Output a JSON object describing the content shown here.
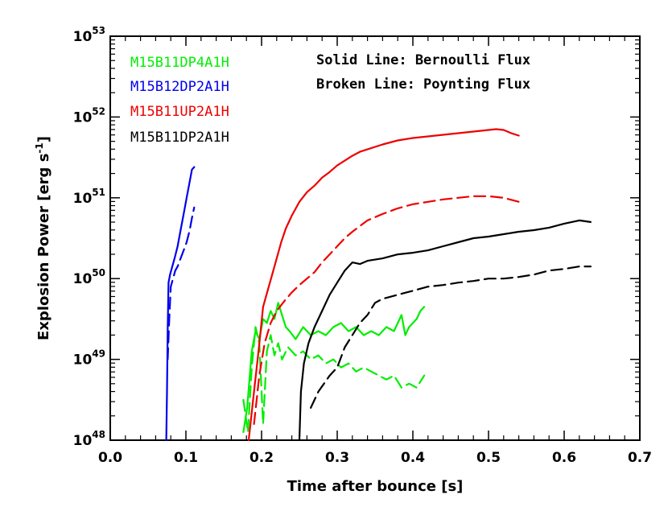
{
  "chart_data": {
    "type": "line",
    "xlabel": "Time after bounce [s]",
    "ylabel": "Explosion Power [erg s",
    "ylabel_sup": "-1",
    "ylabel_close": "]",
    "xlim": [
      0.0,
      0.7
    ],
    "ylim_log10": [
      48,
      53
    ],
    "y_scale": "log",
    "x_ticks": [
      "0.0",
      "0.1",
      "0.2",
      "0.3",
      "0.4",
      "0.5",
      "0.6",
      "0.7"
    ],
    "y_ticks": [
      {
        "base": "10",
        "exp": "48"
      },
      {
        "base": "10",
        "exp": "49"
      },
      {
        "base": "10",
        "exp": "50"
      },
      {
        "base": "10",
        "exp": "51"
      },
      {
        "base": "10",
        "exp": "52"
      },
      {
        "base": "10",
        "exp": "53"
      }
    ],
    "annotations": [
      "Solid Line: Bernoulli Flux",
      "Broken Line: Poynting Flux"
    ],
    "legend_placement": "top-left",
    "series": [
      {
        "name": "M15B11DP4A1H",
        "color": "#00ee00",
        "style": "solid",
        "points": [
          [
            0.176,
            48.1
          ],
          [
            0.181,
            48.4
          ],
          [
            0.187,
            49.1
          ],
          [
            0.192,
            49.35
          ],
          [
            0.197,
            49.25
          ],
          [
            0.202,
            49.5
          ],
          [
            0.207,
            49.45
          ],
          [
            0.212,
            49.6
          ],
          [
            0.217,
            49.5
          ],
          [
            0.222,
            49.7
          ],
          [
            0.227,
            49.55
          ],
          [
            0.232,
            49.4
          ],
          [
            0.237,
            49.35
          ],
          [
            0.245,
            49.25
          ],
          [
            0.255,
            49.4
          ],
          [
            0.265,
            49.3
          ],
          [
            0.275,
            49.35
          ],
          [
            0.285,
            49.3
          ],
          [
            0.295,
            49.4
          ],
          [
            0.305,
            49.45
          ],
          [
            0.315,
            49.35
          ],
          [
            0.325,
            49.4
          ],
          [
            0.335,
            49.3
          ],
          [
            0.345,
            49.35
          ],
          [
            0.355,
            49.3
          ],
          [
            0.365,
            49.4
          ],
          [
            0.375,
            49.35
          ],
          [
            0.385,
            49.55
          ],
          [
            0.39,
            49.3
          ],
          [
            0.395,
            49.4
          ],
          [
            0.405,
            49.5
          ],
          [
            0.41,
            49.6
          ],
          [
            0.415,
            49.65
          ]
        ]
      },
      {
        "name": "M15B11DP4A1H",
        "color": "#00ee00",
        "style": "dashed",
        "points": [
          [
            0.176,
            48.5
          ],
          [
            0.182,
            48.1
          ],
          [
            0.187,
            48.9
          ],
          [
            0.192,
            49.4
          ],
          [
            0.197,
            49.2
          ],
          [
            0.202,
            48.2
          ],
          [
            0.207,
            49.1
          ],
          [
            0.212,
            49.3
          ],
          [
            0.217,
            49.05
          ],
          [
            0.222,
            49.2
          ],
          [
            0.227,
            49.0
          ],
          [
            0.235,
            49.15
          ],
          [
            0.245,
            49.05
          ],
          [
            0.255,
            49.1
          ],
          [
            0.265,
            49.0
          ],
          [
            0.275,
            49.05
          ],
          [
            0.285,
            48.95
          ],
          [
            0.295,
            49.0
          ],
          [
            0.305,
            48.9
          ],
          [
            0.315,
            48.95
          ],
          [
            0.325,
            48.85
          ],
          [
            0.335,
            48.9
          ],
          [
            0.345,
            48.85
          ],
          [
            0.355,
            48.8
          ],
          [
            0.365,
            48.75
          ],
          [
            0.375,
            48.8
          ],
          [
            0.385,
            48.65
          ],
          [
            0.395,
            48.7
          ],
          [
            0.405,
            48.65
          ],
          [
            0.415,
            48.8
          ]
        ]
      },
      {
        "name": "M15B12DP2A1H",
        "color": "#0000ee",
        "style": "solid",
        "points": [
          [
            0.074,
            48.0
          ],
          [
            0.075,
            48.6
          ],
          [
            0.076,
            49.4
          ],
          [
            0.077,
            49.95
          ],
          [
            0.079,
            50.05
          ],
          [
            0.082,
            50.15
          ],
          [
            0.085,
            50.25
          ],
          [
            0.089,
            50.4
          ],
          [
            0.093,
            50.6
          ],
          [
            0.097,
            50.8
          ],
          [
            0.101,
            51.0
          ],
          [
            0.105,
            51.2
          ],
          [
            0.108,
            51.35
          ],
          [
            0.111,
            51.38
          ]
        ]
      },
      {
        "name": "M15B12DP2A1H",
        "color": "#0000ee",
        "style": "dashed",
        "points": [
          [
            0.076,
            49.0
          ],
          [
            0.078,
            49.5
          ],
          [
            0.08,
            49.9
          ],
          [
            0.083,
            50.0
          ],
          [
            0.086,
            50.1
          ],
          [
            0.089,
            50.15
          ],
          [
            0.093,
            50.25
          ],
          [
            0.097,
            50.35
          ],
          [
            0.101,
            50.45
          ],
          [
            0.105,
            50.6
          ],
          [
            0.108,
            50.75
          ],
          [
            0.111,
            50.88
          ]
        ]
      },
      {
        "name": "M15B11UP2A1H",
        "color": "#ee0000",
        "style": "solid",
        "points": [
          [
            0.183,
            48.0
          ],
          [
            0.19,
            48.6
          ],
          [
            0.196,
            49.1
          ],
          [
            0.202,
            49.65
          ],
          [
            0.208,
            49.85
          ],
          [
            0.214,
            50.05
          ],
          [
            0.22,
            50.25
          ],
          [
            0.226,
            50.45
          ],
          [
            0.232,
            50.62
          ],
          [
            0.24,
            50.78
          ],
          [
            0.25,
            50.95
          ],
          [
            0.26,
            51.07
          ],
          [
            0.27,
            51.15
          ],
          [
            0.28,
            51.25
          ],
          [
            0.29,
            51.32
          ],
          [
            0.3,
            51.4
          ],
          [
            0.31,
            51.46
          ],
          [
            0.32,
            51.52
          ],
          [
            0.33,
            51.57
          ],
          [
            0.34,
            51.6
          ],
          [
            0.36,
            51.66
          ],
          [
            0.38,
            51.71
          ],
          [
            0.4,
            51.74
          ],
          [
            0.42,
            51.76
          ],
          [
            0.44,
            51.78
          ],
          [
            0.46,
            51.8
          ],
          [
            0.48,
            51.82
          ],
          [
            0.5,
            51.84
          ],
          [
            0.51,
            51.85
          ],
          [
            0.52,
            51.84
          ],
          [
            0.53,
            51.8
          ],
          [
            0.54,
            51.77
          ]
        ]
      },
      {
        "name": "M15B11UP2A1H",
        "color": "#ee0000",
        "style": "dashed",
        "points": [
          [
            0.19,
            48.2
          ],
          [
            0.197,
            48.8
          ],
          [
            0.204,
            49.2
          ],
          [
            0.212,
            49.45
          ],
          [
            0.22,
            49.6
          ],
          [
            0.23,
            49.72
          ],
          [
            0.24,
            49.83
          ],
          [
            0.25,
            49.92
          ],
          [
            0.26,
            50.0
          ],
          [
            0.27,
            50.08
          ],
          [
            0.28,
            50.2
          ],
          [
            0.29,
            50.3
          ],
          [
            0.3,
            50.4
          ],
          [
            0.31,
            50.5
          ],
          [
            0.32,
            50.58
          ],
          [
            0.33,
            50.65
          ],
          [
            0.34,
            50.72
          ],
          [
            0.36,
            50.8
          ],
          [
            0.38,
            50.87
          ],
          [
            0.4,
            50.92
          ],
          [
            0.42,
            50.95
          ],
          [
            0.44,
            50.98
          ],
          [
            0.46,
            51.0
          ],
          [
            0.48,
            51.02
          ],
          [
            0.5,
            51.02
          ],
          [
            0.52,
            51.0
          ],
          [
            0.54,
            50.95
          ]
        ]
      },
      {
        "name": "M15B11DP2A1H",
        "color": "#000000",
        "style": "solid",
        "points": [
          [
            0.25,
            48.0
          ],
          [
            0.252,
            48.6
          ],
          [
            0.256,
            48.95
          ],
          [
            0.262,
            49.2
          ],
          [
            0.27,
            49.4
          ],
          [
            0.28,
            49.6
          ],
          [
            0.29,
            49.8
          ],
          [
            0.3,
            49.95
          ],
          [
            0.31,
            50.1
          ],
          [
            0.32,
            50.2
          ],
          [
            0.33,
            50.18
          ],
          [
            0.34,
            50.22
          ],
          [
            0.36,
            50.25
          ],
          [
            0.38,
            50.3
          ],
          [
            0.4,
            50.32
          ],
          [
            0.42,
            50.35
          ],
          [
            0.44,
            50.4
          ],
          [
            0.46,
            50.45
          ],
          [
            0.48,
            50.5
          ],
          [
            0.5,
            50.52
          ],
          [
            0.52,
            50.55
          ],
          [
            0.54,
            50.58
          ],
          [
            0.56,
            50.6
          ],
          [
            0.58,
            50.63
          ],
          [
            0.6,
            50.68
          ],
          [
            0.62,
            50.72
          ],
          [
            0.635,
            50.7
          ]
        ]
      },
      {
        "name": "M15B11DP2A1H",
        "color": "#000000",
        "style": "dashed",
        "points": [
          [
            0.265,
            48.4
          ],
          [
            0.275,
            48.6
          ],
          [
            0.29,
            48.8
          ],
          [
            0.3,
            48.9
          ],
          [
            0.31,
            49.15
          ],
          [
            0.32,
            49.3
          ],
          [
            0.33,
            49.45
          ],
          [
            0.34,
            49.55
          ],
          [
            0.35,
            49.7
          ],
          [
            0.36,
            49.75
          ],
          [
            0.38,
            49.8
          ],
          [
            0.4,
            49.85
          ],
          [
            0.42,
            49.9
          ],
          [
            0.44,
            49.92
          ],
          [
            0.46,
            49.95
          ],
          [
            0.48,
            49.97
          ],
          [
            0.5,
            50.0
          ],
          [
            0.52,
            50.0
          ],
          [
            0.54,
            50.02
          ],
          [
            0.56,
            50.05
          ],
          [
            0.58,
            50.1
          ],
          [
            0.6,
            50.12
          ],
          [
            0.62,
            50.15
          ],
          [
            0.635,
            50.15
          ]
        ]
      }
    ]
  },
  "legend": [
    {
      "label": "M15B11DP4A1H",
      "color": "#00ee00"
    },
    {
      "label": "M15B12DP2A1H",
      "color": "#0000ee"
    },
    {
      "label": "M15B11UP2A1H",
      "color": "#ee0000"
    },
    {
      "label": "M15B11DP2A1H",
      "color": "#000000"
    }
  ]
}
